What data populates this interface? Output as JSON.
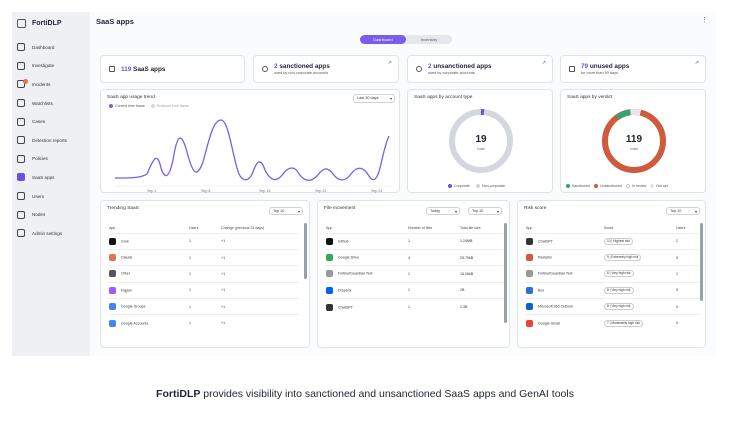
{
  "sidebar": {
    "brand": "FortiDLP",
    "items": [
      {
        "label": "Dashboard"
      },
      {
        "label": "Investigate"
      },
      {
        "label": "Incidents"
      },
      {
        "label": "Watchlists"
      },
      {
        "label": "Cases"
      },
      {
        "label": "Detection reports"
      },
      {
        "label": "Policies"
      },
      {
        "label": "SaaS apps"
      },
      {
        "label": "Users"
      },
      {
        "label": "Nodes"
      },
      {
        "label": "Admin settings"
      }
    ],
    "active": "SaaS apps"
  },
  "header": {
    "title": "SaaS apps",
    "tabs": [
      "Dashboard",
      "Inventory"
    ],
    "active_tab": "Dashboard"
  },
  "stats": [
    {
      "value": "119",
      "text": "SaaS apps",
      "sub": ""
    },
    {
      "value": "2",
      "text": "sanctioned apps",
      "sub": "used by non-corporate accounts"
    },
    {
      "value": "2",
      "text": "unsanctioned apps",
      "sub": "used by corporate accounts"
    },
    {
      "value": "79",
      "text": "unused apps",
      "sub": "for more than 90 days"
    }
  ],
  "trend": {
    "title": "SaaS app usage trend",
    "range": "Last 30 days",
    "legend": [
      "Current time frame",
      "Previous time frame"
    ],
    "accent": "#7b5cf0",
    "x_ticks": [
      "Sep 1",
      "Sep 8",
      "Sep 15",
      "Sep 22",
      "Sep 24"
    ]
  },
  "account_type": {
    "title": "SaaS apps by account type",
    "total": "19",
    "total_label": "total",
    "legend": [
      "Corporate",
      "Non-corporate"
    ],
    "colors": [
      "#6d4ee8",
      "#cfd3db"
    ]
  },
  "verdict": {
    "title": "SaaS apps by verdict",
    "total": "119",
    "total_label": "total",
    "legend": [
      "Sanctioned",
      "Unsanctioned",
      "In review",
      "Not set"
    ],
    "colors": [
      "#3aa070",
      "#d05a3c",
      "#c9ccd4",
      "#e6e7ec"
    ]
  },
  "trending": {
    "title": "Trending SaaS",
    "top": "Top 10",
    "headers": [
      "App",
      "Users",
      "Change (previous 24 days)"
    ],
    "rows": [
      {
        "app": "Grok",
        "users": "1",
        "change": "+1",
        "color": "#111"
      },
      {
        "app": "Claude",
        "users": "1",
        "change": "+1",
        "color": "#d97757"
      },
      {
        "app": "Other",
        "users": "1",
        "change": "+1",
        "color": "#555"
      },
      {
        "app": "Figjam",
        "users": "1",
        "change": "+1",
        "color": "#a259ff"
      },
      {
        "app": "Google Groups",
        "users": "1",
        "change": "+1",
        "color": "#4285f4"
      },
      {
        "app": "Google Accounts",
        "users": "1",
        "change": "+1",
        "color": "#4285f4"
      }
    ]
  },
  "file_movement": {
    "title": "File movement",
    "period": "Today",
    "top": "Top 10",
    "headers": [
      "App",
      "Number of files",
      "Total file size"
    ],
    "rows": [
      {
        "app": "Github",
        "files": "1",
        "size": "1.24MB",
        "color": "#111"
      },
      {
        "app": "Google Drive",
        "files": "4",
        "size": "25.79kB",
        "color": "#34a853"
      },
      {
        "app": "FortinetGuardian Test",
        "files": "1",
        "size": "16.26kB",
        "color": "#999"
      },
      {
        "app": "Dropbox",
        "files": "1",
        "size": "2B",
        "color": "#0061fe"
      },
      {
        "app": "ChatGPT",
        "files": "1",
        "size": "1.3B",
        "color": "#333"
      }
    ]
  },
  "risk": {
    "title": "Risk score",
    "top": "Top 10",
    "headers": [
      "App",
      "Score",
      "Users"
    ],
    "rows": [
      {
        "app": "ChatGPT",
        "score": "10 | Highest risk",
        "users": "2",
        "color": "#333"
      },
      {
        "app": "Pastebin",
        "score": "9 | Extremely high risk",
        "users": "0",
        "color": "#d05a3c"
      },
      {
        "app": "FortinetGuardian Test",
        "score": "8 | Very high risk",
        "users": "1",
        "color": "#999"
      },
      {
        "app": "Box",
        "score": "8 | Very high risk",
        "users": "0",
        "color": "#2a6fdb"
      },
      {
        "app": "Microsoft 365 Outlook",
        "score": "8 | Very high risk",
        "users": "0",
        "color": "#0a64c8"
      },
      {
        "app": "Google Gmail",
        "score": "7 | Moderately high risk",
        "users": "0",
        "color": "#ea4335"
      }
    ]
  },
  "caption": {
    "brand": "FortiDLP",
    "text": "provides visibility into sanctioned and unsanctioned SaaS apps and GenAI tools"
  }
}
